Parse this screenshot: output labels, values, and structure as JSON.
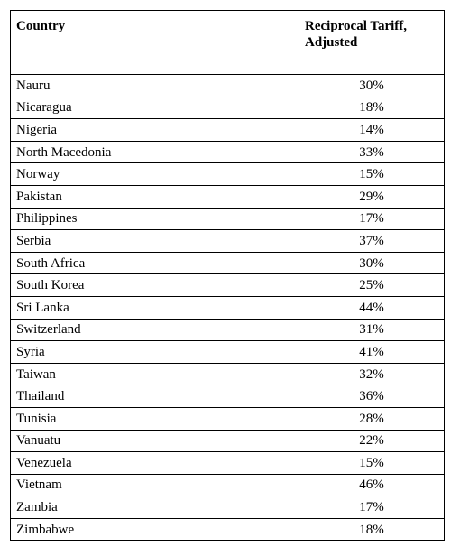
{
  "table": {
    "headers": [
      "Country",
      "Reciprocal Tariff, Adjusted"
    ],
    "rows": [
      {
        "country": "Nauru",
        "tariff": "30%"
      },
      {
        "country": "Nicaragua",
        "tariff": "18%"
      },
      {
        "country": "Nigeria",
        "tariff": "14%"
      },
      {
        "country": "North Macedonia",
        "tariff": "33%"
      },
      {
        "country": "Norway",
        "tariff": "15%"
      },
      {
        "country": "Pakistan",
        "tariff": "29%"
      },
      {
        "country": "Philippines",
        "tariff": "17%"
      },
      {
        "country": "Serbia",
        "tariff": "37%"
      },
      {
        "country": "South Africa",
        "tariff": "30%"
      },
      {
        "country": "South Korea",
        "tariff": "25%"
      },
      {
        "country": "Sri Lanka",
        "tariff": "44%"
      },
      {
        "country": "Switzerland",
        "tariff": "31%"
      },
      {
        "country": "Syria",
        "tariff": "41%"
      },
      {
        "country": "Taiwan",
        "tariff": "32%"
      },
      {
        "country": "Thailand",
        "tariff": "36%"
      },
      {
        "country": "Tunisia",
        "tariff": "28%"
      },
      {
        "country": "Vanuatu",
        "tariff": "22%"
      },
      {
        "country": "Venezuela",
        "tariff": "15%"
      },
      {
        "country": "Vietnam",
        "tariff": "46%"
      },
      {
        "country": "Zambia",
        "tariff": "17%"
      },
      {
        "country": "Zimbabwe",
        "tariff": "18%"
      }
    ]
  }
}
